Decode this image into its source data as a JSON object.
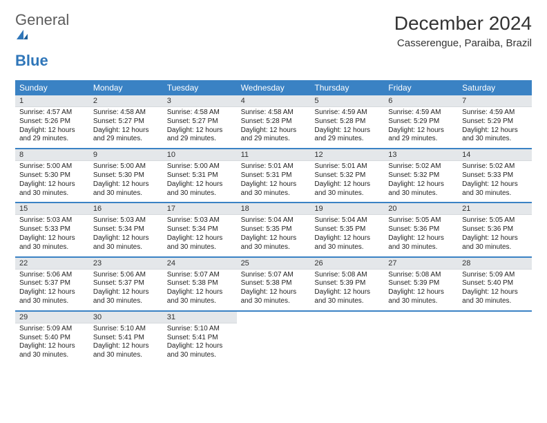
{
  "brand": {
    "word1": "General",
    "word2": "Blue"
  },
  "header": {
    "title": "December 2024",
    "location": "Casserengue, Paraiba, Brazil"
  },
  "colors": {
    "accent": "#3a82c4",
    "daynum_bg": "#e4e7ea",
    "text": "#222222",
    "logo_gray": "#5c5c5c",
    "logo_blue": "#2f76b9"
  },
  "dow": [
    "Sunday",
    "Monday",
    "Tuesday",
    "Wednesday",
    "Thursday",
    "Friday",
    "Saturday"
  ],
  "weeks": [
    [
      {
        "n": "1",
        "sr": "Sunrise: 4:57 AM",
        "ss": "Sunset: 5:26 PM",
        "d1": "Daylight: 12 hours",
        "d2": "and 29 minutes."
      },
      {
        "n": "2",
        "sr": "Sunrise: 4:58 AM",
        "ss": "Sunset: 5:27 PM",
        "d1": "Daylight: 12 hours",
        "d2": "and 29 minutes."
      },
      {
        "n": "3",
        "sr": "Sunrise: 4:58 AM",
        "ss": "Sunset: 5:27 PM",
        "d1": "Daylight: 12 hours",
        "d2": "and 29 minutes."
      },
      {
        "n": "4",
        "sr": "Sunrise: 4:58 AM",
        "ss": "Sunset: 5:28 PM",
        "d1": "Daylight: 12 hours",
        "d2": "and 29 minutes."
      },
      {
        "n": "5",
        "sr": "Sunrise: 4:59 AM",
        "ss": "Sunset: 5:28 PM",
        "d1": "Daylight: 12 hours",
        "d2": "and 29 minutes."
      },
      {
        "n": "6",
        "sr": "Sunrise: 4:59 AM",
        "ss": "Sunset: 5:29 PM",
        "d1": "Daylight: 12 hours",
        "d2": "and 29 minutes."
      },
      {
        "n": "7",
        "sr": "Sunrise: 4:59 AM",
        "ss": "Sunset: 5:29 PM",
        "d1": "Daylight: 12 hours",
        "d2": "and 30 minutes."
      }
    ],
    [
      {
        "n": "8",
        "sr": "Sunrise: 5:00 AM",
        "ss": "Sunset: 5:30 PM",
        "d1": "Daylight: 12 hours",
        "d2": "and 30 minutes."
      },
      {
        "n": "9",
        "sr": "Sunrise: 5:00 AM",
        "ss": "Sunset: 5:30 PM",
        "d1": "Daylight: 12 hours",
        "d2": "and 30 minutes."
      },
      {
        "n": "10",
        "sr": "Sunrise: 5:00 AM",
        "ss": "Sunset: 5:31 PM",
        "d1": "Daylight: 12 hours",
        "d2": "and 30 minutes."
      },
      {
        "n": "11",
        "sr": "Sunrise: 5:01 AM",
        "ss": "Sunset: 5:31 PM",
        "d1": "Daylight: 12 hours",
        "d2": "and 30 minutes."
      },
      {
        "n": "12",
        "sr": "Sunrise: 5:01 AM",
        "ss": "Sunset: 5:32 PM",
        "d1": "Daylight: 12 hours",
        "d2": "and 30 minutes."
      },
      {
        "n": "13",
        "sr": "Sunrise: 5:02 AM",
        "ss": "Sunset: 5:32 PM",
        "d1": "Daylight: 12 hours",
        "d2": "and 30 minutes."
      },
      {
        "n": "14",
        "sr": "Sunrise: 5:02 AM",
        "ss": "Sunset: 5:33 PM",
        "d1": "Daylight: 12 hours",
        "d2": "and 30 minutes."
      }
    ],
    [
      {
        "n": "15",
        "sr": "Sunrise: 5:03 AM",
        "ss": "Sunset: 5:33 PM",
        "d1": "Daylight: 12 hours",
        "d2": "and 30 minutes."
      },
      {
        "n": "16",
        "sr": "Sunrise: 5:03 AM",
        "ss": "Sunset: 5:34 PM",
        "d1": "Daylight: 12 hours",
        "d2": "and 30 minutes."
      },
      {
        "n": "17",
        "sr": "Sunrise: 5:03 AM",
        "ss": "Sunset: 5:34 PM",
        "d1": "Daylight: 12 hours",
        "d2": "and 30 minutes."
      },
      {
        "n": "18",
        "sr": "Sunrise: 5:04 AM",
        "ss": "Sunset: 5:35 PM",
        "d1": "Daylight: 12 hours",
        "d2": "and 30 minutes."
      },
      {
        "n": "19",
        "sr": "Sunrise: 5:04 AM",
        "ss": "Sunset: 5:35 PM",
        "d1": "Daylight: 12 hours",
        "d2": "and 30 minutes."
      },
      {
        "n": "20",
        "sr": "Sunrise: 5:05 AM",
        "ss": "Sunset: 5:36 PM",
        "d1": "Daylight: 12 hours",
        "d2": "and 30 minutes."
      },
      {
        "n": "21",
        "sr": "Sunrise: 5:05 AM",
        "ss": "Sunset: 5:36 PM",
        "d1": "Daylight: 12 hours",
        "d2": "and 30 minutes."
      }
    ],
    [
      {
        "n": "22",
        "sr": "Sunrise: 5:06 AM",
        "ss": "Sunset: 5:37 PM",
        "d1": "Daylight: 12 hours",
        "d2": "and 30 minutes."
      },
      {
        "n": "23",
        "sr": "Sunrise: 5:06 AM",
        "ss": "Sunset: 5:37 PM",
        "d1": "Daylight: 12 hours",
        "d2": "and 30 minutes."
      },
      {
        "n": "24",
        "sr": "Sunrise: 5:07 AM",
        "ss": "Sunset: 5:38 PM",
        "d1": "Daylight: 12 hours",
        "d2": "and 30 minutes."
      },
      {
        "n": "25",
        "sr": "Sunrise: 5:07 AM",
        "ss": "Sunset: 5:38 PM",
        "d1": "Daylight: 12 hours",
        "d2": "and 30 minutes."
      },
      {
        "n": "26",
        "sr": "Sunrise: 5:08 AM",
        "ss": "Sunset: 5:39 PM",
        "d1": "Daylight: 12 hours",
        "d2": "and 30 minutes."
      },
      {
        "n": "27",
        "sr": "Sunrise: 5:08 AM",
        "ss": "Sunset: 5:39 PM",
        "d1": "Daylight: 12 hours",
        "d2": "and 30 minutes."
      },
      {
        "n": "28",
        "sr": "Sunrise: 5:09 AM",
        "ss": "Sunset: 5:40 PM",
        "d1": "Daylight: 12 hours",
        "d2": "and 30 minutes."
      }
    ],
    [
      {
        "n": "29",
        "sr": "Sunrise: 5:09 AM",
        "ss": "Sunset: 5:40 PM",
        "d1": "Daylight: 12 hours",
        "d2": "and 30 minutes."
      },
      {
        "n": "30",
        "sr": "Sunrise: 5:10 AM",
        "ss": "Sunset: 5:41 PM",
        "d1": "Daylight: 12 hours",
        "d2": "and 30 minutes."
      },
      {
        "n": "31",
        "sr": "Sunrise: 5:10 AM",
        "ss": "Sunset: 5:41 PM",
        "d1": "Daylight: 12 hours",
        "d2": "and 30 minutes."
      },
      {
        "n": "",
        "sr": "",
        "ss": "",
        "d1": "",
        "d2": ""
      },
      {
        "n": "",
        "sr": "",
        "ss": "",
        "d1": "",
        "d2": ""
      },
      {
        "n": "",
        "sr": "",
        "ss": "",
        "d1": "",
        "d2": ""
      },
      {
        "n": "",
        "sr": "",
        "ss": "",
        "d1": "",
        "d2": ""
      }
    ]
  ]
}
